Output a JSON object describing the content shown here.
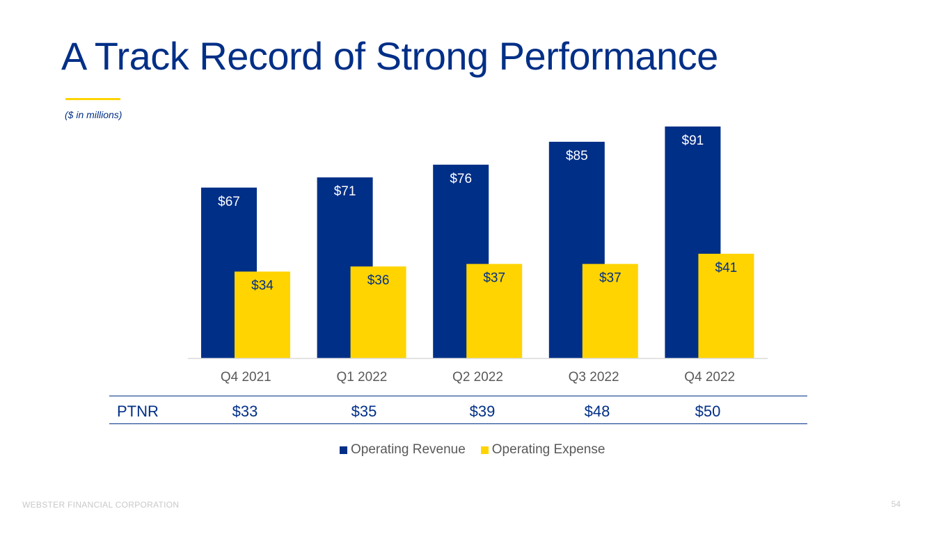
{
  "slide": {
    "title": "A Track Record of Strong Performance",
    "units_note": "($ in millions)",
    "footer_company": "WEBSTER FINANCIAL CORPORATION",
    "page_number": "54"
  },
  "colors": {
    "navy": "#002f87",
    "yellow": "#ffd400",
    "axis": "#d9d9d9",
    "tick": "#595959"
  },
  "chart_data": {
    "type": "bar",
    "title": "",
    "xlabel": "",
    "ylabel": "",
    "ylim": [
      0,
      100
    ],
    "grid": false,
    "legend_position": "bottom",
    "categories": [
      "Q4 2021",
      "Q1 2022",
      "Q2 2022",
      "Q3 2022",
      "Q4 2022"
    ],
    "series": [
      {
        "name": "Operating Revenue",
        "color": "#002f87",
        "label_color": "#ffffff",
        "values": [
          67,
          71,
          76,
          85,
          91
        ],
        "labels": [
          "$67",
          "$71",
          "$76",
          "$85",
          "$91"
        ]
      },
      {
        "name": "Operating Expense",
        "color": "#ffd400",
        "label_color": "#002f87",
        "values": [
          34,
          36,
          37,
          37,
          41
        ],
        "labels": [
          "$34",
          "$36",
          "$37",
          "$37",
          "$41"
        ]
      }
    ]
  },
  "ptnr": {
    "label": "PTNR",
    "values": [
      "$33",
      "$35",
      "$39",
      "$48",
      "$50"
    ]
  }
}
